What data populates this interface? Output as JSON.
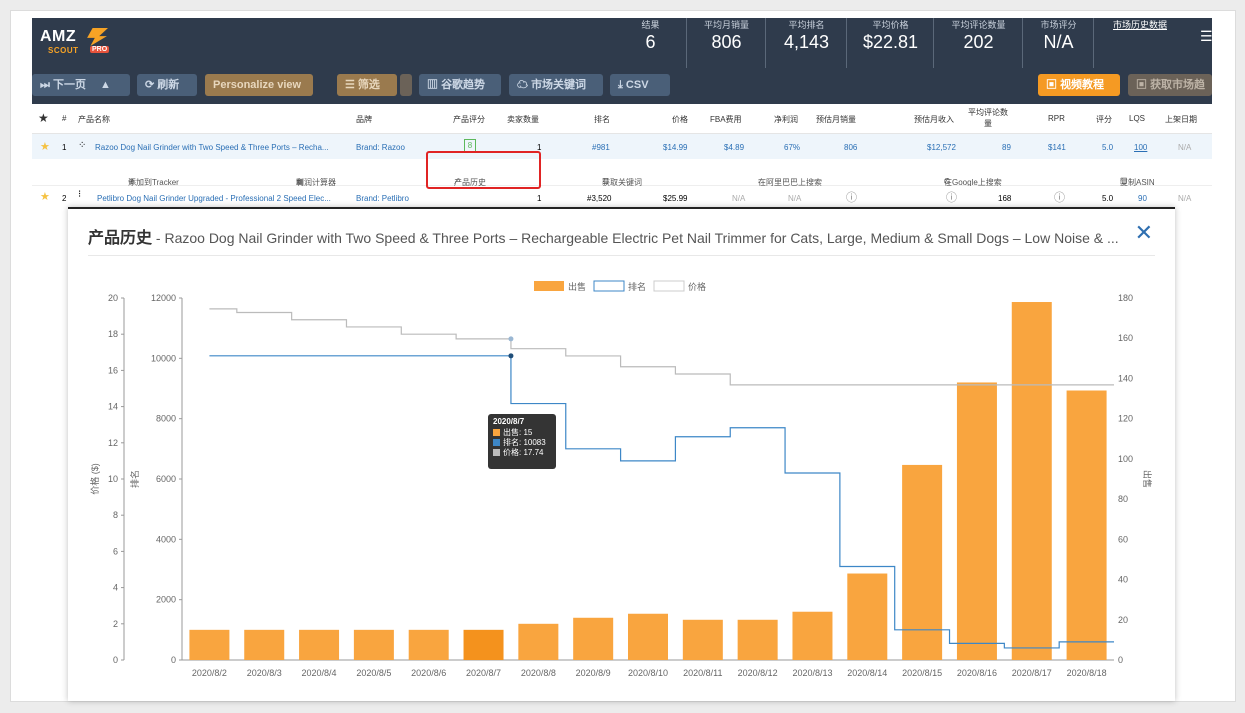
{
  "logo": {
    "amz": "AMZ",
    "scout": "SCOUT",
    "pro": "PRO"
  },
  "stats": [
    {
      "label": "结果",
      "value": "6"
    },
    {
      "label": "平均月销量",
      "value": "806"
    },
    {
      "label": "平均排名",
      "value": "4,143"
    },
    {
      "label": "平均价格",
      "value": "$22.81"
    },
    {
      "label": "平均评论数量",
      "value": "202"
    },
    {
      "label": "市场评分",
      "value": "N/A"
    },
    {
      "label": "市场历史数据",
      "value": ""
    }
  ],
  "toolbar": {
    "next": "下一页",
    "refresh": "刷新",
    "personalize": "Personalize view",
    "filter": "筛选",
    "trends": "谷歌趋势",
    "keywords": "市场关键词",
    "csv": "CSV",
    "tutorial": "视频教程",
    "trend_right": "获取市场趋"
  },
  "table_headers": [
    "★",
    "#",
    "产品名称",
    "品牌",
    "产品评分",
    "卖家数量",
    "排名",
    "价格",
    "FBA费用",
    "净利润",
    "预估月销量",
    "预估月收入",
    "平均评论数量",
    "RPR",
    "评分",
    "LQS",
    "上架日期"
  ],
  "rows": [
    {
      "num": "1",
      "name": "Razoo Dog Nail Grinder with Two Speed & Three Ports – Recha...",
      "brand": "Brand: Razoo",
      "score": "8",
      "sellers": "1",
      "rank": "#981",
      "price": "$14.99",
      "fba": "$4.89",
      "margin": "67%",
      "sales": "806",
      "revenue": "$12,572",
      "reviews": "89",
      "rpr": "$141",
      "rating": "5.0",
      "lqs": "100",
      "date": "N/A"
    },
    {
      "num": "2",
      "name": "Petlibro Dog Nail Grinder Upgraded - Professional 2 Speed Elec...",
      "brand": "Brand: Petlibro",
      "sellers": "1",
      "rank": "#3,520",
      "price": "$25.99",
      "fba": "N/A",
      "margin": "N/A",
      "reviews": "168",
      "rating": "5.0",
      "lqs": "90",
      "date": "N/A"
    }
  ],
  "actions": [
    "添加到Tracker",
    "利润计算器",
    "产品历史",
    "获取关键词",
    "在阿里巴巴上搜索",
    "在Google上搜索",
    "复制ASIN"
  ],
  "modal": {
    "title": "产品历史",
    "subtitle": " - Razoo Dog Nail Grinder with Two Speed & Three Ports – Rechargeable Electric Pet Nail Trimmer for Cats, Large, Medium & Small Dogs – Low Noise & ...",
    "close": "✕"
  },
  "tooltip": {
    "date": "2020/8/7",
    "sales": "出售: 15",
    "rank": "排名: 10083",
    "price": "价格: 17.74"
  },
  "colors": {
    "bar": "#f9a53f",
    "rank": "#3d87c7",
    "price": "#bbbbbb",
    "header": "#2f3b4c"
  },
  "chart_data": {
    "type": "bar+line",
    "legend": [
      "出售",
      "排名",
      "价格"
    ],
    "legend_position": "top-center",
    "categories": [
      "2020/8/2",
      "2020/8/3",
      "2020/8/4",
      "2020/8/5",
      "2020/8/6",
      "2020/8/7",
      "2020/8/8",
      "2020/8/9",
      "2020/8/10",
      "2020/8/11",
      "2020/8/12",
      "2020/8/13",
      "2020/8/14",
      "2020/8/15",
      "2020/8/16",
      "2020/8/17",
      "2020/8/18"
    ],
    "series": [
      {
        "name": "出售",
        "type": "bar",
        "axis": "right",
        "values": [
          15,
          15,
          15,
          15,
          15,
          15,
          18,
          21,
          23,
          20,
          20,
          24,
          43,
          97,
          138,
          178,
          134
        ]
      },
      {
        "name": "排名",
        "type": "step",
        "axis": "left-inner",
        "values": [
          10083,
          10083,
          10083,
          10083,
          10083,
          10083,
          8500,
          7000,
          6600,
          7400,
          7700,
          6200,
          3100,
          1000,
          550,
          400,
          600
        ]
      },
      {
        "name": "价格",
        "type": "step",
        "axis": "left-outer",
        "values": [
          19.4,
          19.2,
          18.8,
          18.4,
          18.0,
          17.74,
          17.2,
          16.8,
          16.2,
          15.8,
          15.2,
          15.2,
          15.2,
          15.2,
          15.2,
          15.2,
          15.2
        ]
      }
    ],
    "left_outer_axis": {
      "label": "价格 ($)",
      "ticks": [
        0,
        2,
        4,
        6,
        8,
        10,
        12,
        14,
        16,
        18,
        20
      ],
      "ylim": [
        0,
        20
      ]
    },
    "left_inner_axis": {
      "label": "排名",
      "ticks": [
        0,
        2000,
        4000,
        6000,
        8000,
        10000,
        12000
      ],
      "ylim": [
        0,
        12000
      ]
    },
    "right_axis": {
      "label": "出售",
      "ticks": [
        0,
        20,
        40,
        60,
        80,
        100,
        120,
        140,
        160,
        180
      ],
      "ylim": [
        0,
        180
      ]
    },
    "grid": false
  }
}
